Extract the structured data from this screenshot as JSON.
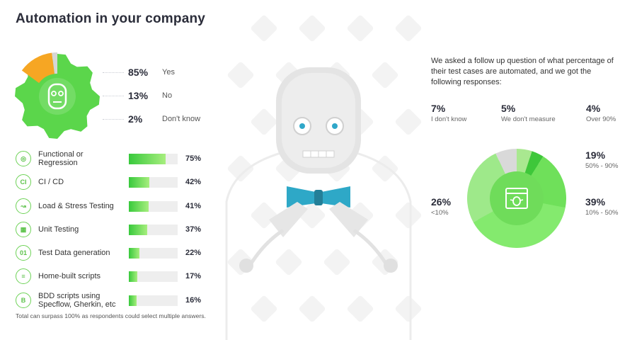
{
  "title": "Automation in your company",
  "chart_data": [
    {
      "type": "pie",
      "title": "",
      "series": [
        {
          "label": "Yes",
          "value": 85
        },
        {
          "label": "No",
          "value": 13
        },
        {
          "label": "Don't know",
          "value": 2
        }
      ],
      "labels": [
        "85%",
        "13%",
        "2%"
      ],
      "colors": [
        "#5bd64b",
        "#f6a623",
        "#d6d6d6"
      ]
    },
    {
      "type": "bar",
      "title": "",
      "categories": [
        "Functional or Regression",
        "CI / CD",
        "Load & Stress Testing",
        "Unit Testing",
        "Test Data generation",
        "Home-built scripts",
        "BDD scripts using Specflow, Gherkin, etc"
      ],
      "values": [
        75,
        42,
        41,
        37,
        22,
        17,
        16
      ],
      "value_labels": [
        "75%",
        "42%",
        "41%",
        "37%",
        "22%",
        "17%",
        "16%"
      ],
      "icons": [
        "gear-target-icon",
        "ci-cd-icon",
        "load-gauge-icon",
        "unit-blocks-icon",
        "binary-data-icon",
        "script-lines-icon",
        "bdd-b-icon"
      ],
      "icon_glyphs": [
        "◎",
        "CI",
        "↝",
        "▦",
        "01",
        "≡",
        "B"
      ],
      "ylim": [
        0,
        100
      ]
    },
    {
      "type": "pie",
      "title": "",
      "series": [
        {
          "label": "I don't know",
          "value": 7
        },
        {
          "label": "We don't measure",
          "value": 5
        },
        {
          "label": "Over 90%",
          "value": 4
        },
        {
          "label": "50% - 90%",
          "value": 19
        },
        {
          "label": "10% - 50%",
          "value": 39
        },
        {
          "label": "<10%",
          "value": 26
        }
      ],
      "labels": [
        "7%",
        "5%",
        "4%",
        "19%",
        "39%",
        "26%"
      ],
      "colors": [
        "#d9d9d9",
        "#a9e890",
        "#3ec73a",
        "#6fe05a",
        "#84ea6e",
        "#9ee98a"
      ]
    }
  ],
  "followup_text": "We asked a follow up question of what percentage of their test cases are automated, and we got the following responses:",
  "footnote": "Total can surpass 100% as respondents could select multiple answers."
}
